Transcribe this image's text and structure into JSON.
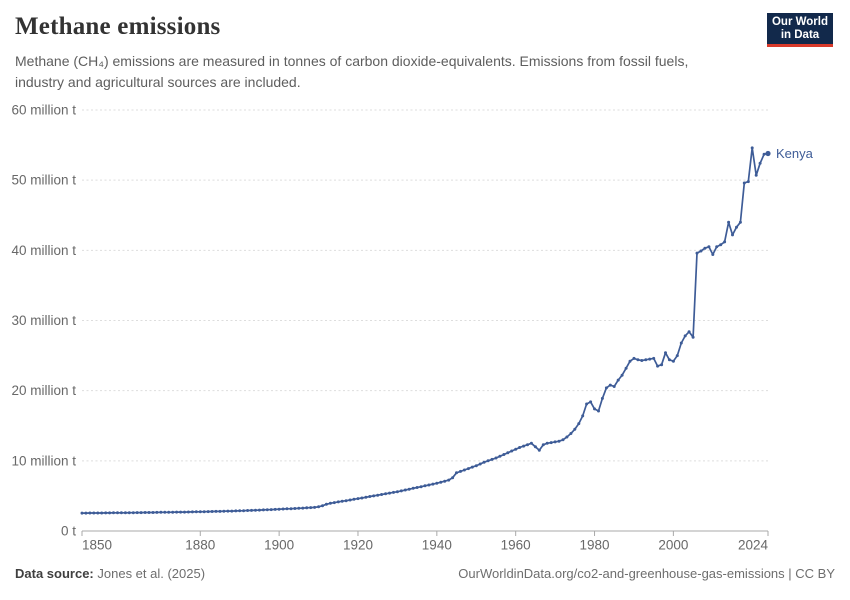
{
  "header": {
    "title": "Methane emissions",
    "subtitle_line1": "Methane (CH₄) emissions are measured in tonnes of carbon dioxide-equivalents. Emissions from fossil fuels,",
    "subtitle_line2": "industry and agricultural sources are included.",
    "logo_line1": "Our World",
    "logo_line2": "in Data"
  },
  "footer": {
    "source_label": "Data source:",
    "source_value": "Jones et al. (2025)",
    "right_text": "OurWorldinData.org/co2-and-greenhouse-gas-emissions | CC BY"
  },
  "colors": {
    "line": "#3E5C97",
    "gridline": "#DDDDDD",
    "axis": "#A9A9A9",
    "tick_text": "#686868",
    "logo_navy": "#12294B",
    "logo_red": "#D93A2B"
  },
  "chart_data": {
    "type": "line",
    "title": "Methane emissions",
    "entity_label": "Kenya",
    "unit": "tonnes of carbon dioxide-equivalents",
    "xlabel": "",
    "ylabel": "",
    "xlim": [
      1850,
      2024
    ],
    "ylim": [
      0,
      60
    ],
    "grid": "dashed-horizontal",
    "legend_position": "end-of-line-label",
    "x_start": 1850,
    "x_end": 2024,
    "x_interval": 1,
    "x_ticks": [
      {
        "value": 1850,
        "label": "1850",
        "anchor": "start"
      },
      {
        "value": 1880,
        "label": "1880",
        "anchor": "middle"
      },
      {
        "value": 1900,
        "label": "1900",
        "anchor": "middle"
      },
      {
        "value": 1920,
        "label": "1920",
        "anchor": "middle"
      },
      {
        "value": 1940,
        "label": "1940",
        "anchor": "middle"
      },
      {
        "value": 1960,
        "label": "1960",
        "anchor": "middle"
      },
      {
        "value": 1980,
        "label": "1980",
        "anchor": "middle"
      },
      {
        "value": 2000,
        "label": "2000",
        "anchor": "middle"
      },
      {
        "value": 2024,
        "label": "2024",
        "anchor": "end"
      }
    ],
    "y_ticks": [
      {
        "value": 0,
        "label": "0 t"
      },
      {
        "value": 10,
        "label": "10 million t"
      },
      {
        "value": 20,
        "label": "20 million t"
      },
      {
        "value": 30,
        "label": "30 million t"
      },
      {
        "value": 40,
        "label": "40 million t"
      },
      {
        "value": 50,
        "label": "50 million t"
      },
      {
        "value": 60,
        "label": "60 million t"
      }
    ],
    "series": [
      {
        "name": "Kenya",
        "unit": "million tonnes CO2-eq",
        "values": [
          2.55,
          2.55,
          2.56,
          2.56,
          2.57,
          2.57,
          2.58,
          2.58,
          2.59,
          2.59,
          2.6,
          2.6,
          2.61,
          2.61,
          2.62,
          2.62,
          2.63,
          2.64,
          2.64,
          2.65,
          2.66,
          2.66,
          2.67,
          2.68,
          2.69,
          2.7,
          2.7,
          2.71,
          2.72,
          2.73,
          2.74,
          2.75,
          2.77,
          2.78,
          2.79,
          2.8,
          2.82,
          2.83,
          2.84,
          2.86,
          2.88,
          2.9,
          2.92,
          2.94,
          2.96,
          2.98,
          3.0,
          3.03,
          3.05,
          3.08,
          3.1,
          3.13,
          3.16,
          3.18,
          3.21,
          3.24,
          3.27,
          3.3,
          3.33,
          3.36,
          3.45,
          3.6,
          3.8,
          3.95,
          4.05,
          4.15,
          4.25,
          4.32,
          4.42,
          4.52,
          4.62,
          4.7,
          4.8,
          4.92,
          5.0,
          5.1,
          5.2,
          5.3,
          5.4,
          5.5,
          5.6,
          5.72,
          5.84,
          5.96,
          6.08,
          6.2,
          6.32,
          6.44,
          6.56,
          6.68,
          6.8,
          6.95,
          7.1,
          7.25,
          7.6,
          8.3,
          8.5,
          8.7,
          8.9,
          9.1,
          9.3,
          9.55,
          9.8,
          10.0,
          10.2,
          10.4,
          10.65,
          10.9,
          11.15,
          11.4,
          11.65,
          11.9,
          12.1,
          12.3,
          12.5,
          12.0,
          11.5,
          12.3,
          12.5,
          12.6,
          12.7,
          12.8,
          13.0,
          13.4,
          13.9,
          14.5,
          15.3,
          16.4,
          18.1,
          18.4,
          17.4,
          17.1,
          18.9,
          20.4,
          20.8,
          20.6,
          21.5,
          22.2,
          23.2,
          24.2,
          24.6,
          24.4,
          24.3,
          24.4,
          24.5,
          24.6,
          23.5,
          23.7,
          25.4,
          24.4,
          24.2,
          25.0,
          26.8,
          27.8,
          28.4,
          27.6,
          39.6,
          39.9,
          40.3,
          40.5,
          39.4,
          40.5,
          40.8,
          41.2,
          44.0,
          42.2,
          43.3,
          44.0,
          49.6,
          49.8,
          54.6,
          50.7,
          52.4,
          53.7,
          53.8
        ]
      }
    ]
  }
}
